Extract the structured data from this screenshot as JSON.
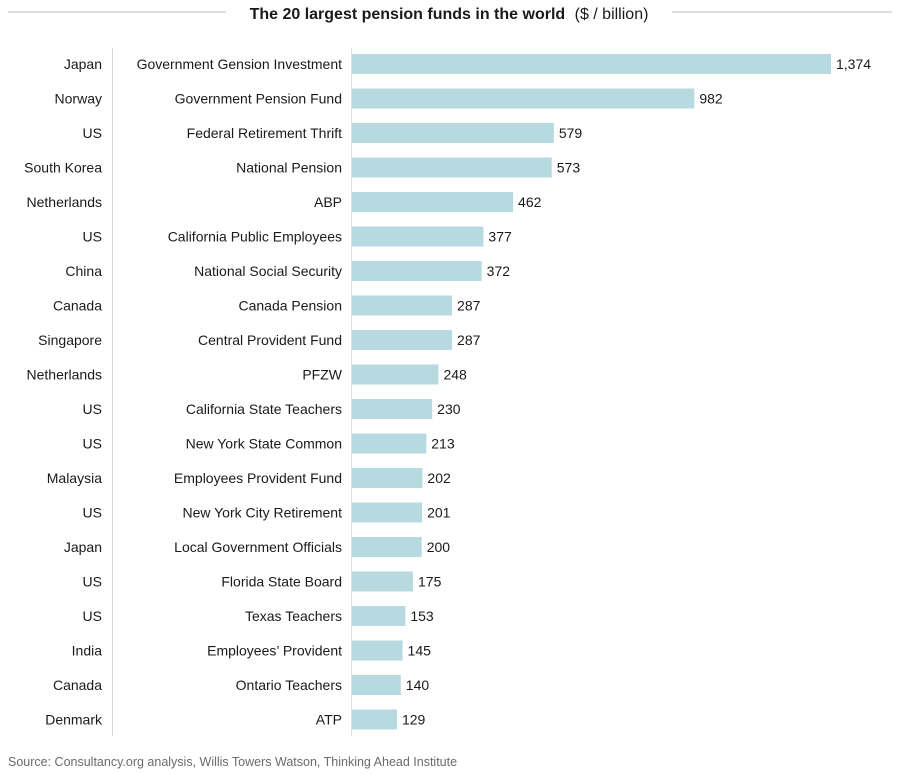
{
  "chart_data": {
    "type": "bar",
    "orientation": "horizontal",
    "title": "The 20 largest pension funds in the world",
    "title_unit": "($ / billion)",
    "source": "Source: Consultancy.org analysis, Willis Towers Watson, Thinking Ahead Institute",
    "grid": false,
    "legend": "none",
    "bar_color": "#b7d9e0",
    "xlim": [
      0,
      1374
    ],
    "categories": [
      {
        "country": "Japan",
        "fund": "Government Gension Investment"
      },
      {
        "country": "Norway",
        "fund": "Government Pension Fund"
      },
      {
        "country": "US",
        "fund": "Federal Retirement Thrift"
      },
      {
        "country": "South Korea",
        "fund": "National Pension"
      },
      {
        "country": "Netherlands",
        "fund": "ABP"
      },
      {
        "country": "US",
        "fund": "California Public Employees"
      },
      {
        "country": "China",
        "fund": "National Social Security"
      },
      {
        "country": "Canada",
        "fund": "Canada Pension"
      },
      {
        "country": "Singapore",
        "fund": "Central Provident Fund"
      },
      {
        "country": "Netherlands",
        "fund": "PFZW"
      },
      {
        "country": "US",
        "fund": "California State Teachers"
      },
      {
        "country": "US",
        "fund": "New York State Common"
      },
      {
        "country": "Malaysia",
        "fund": "Employees Provident Fund"
      },
      {
        "country": "US",
        "fund": "New York City Retirement"
      },
      {
        "country": "Japan",
        "fund": "Local Government Officials"
      },
      {
        "country": "US",
        "fund": "Florida State Board"
      },
      {
        "country": "US",
        "fund": "Texas Teachers"
      },
      {
        "country": "India",
        "fund": "Employees’ Provident"
      },
      {
        "country": "Canada",
        "fund": "Ontario Teachers"
      },
      {
        "country": "Denmark",
        "fund": "ATP"
      }
    ],
    "values": [
      1374,
      982,
      579,
      573,
      462,
      377,
      372,
      287,
      287,
      248,
      230,
      213,
      202,
      201,
      200,
      175,
      153,
      145,
      140,
      129
    ],
    "value_labels": [
      "1,374",
      "982",
      "579",
      "573",
      "462",
      "377",
      "372",
      "287",
      "287",
      "248",
      "230",
      "213",
      "202",
      "201",
      "200",
      "175",
      "153",
      "145",
      "140",
      "129"
    ]
  }
}
